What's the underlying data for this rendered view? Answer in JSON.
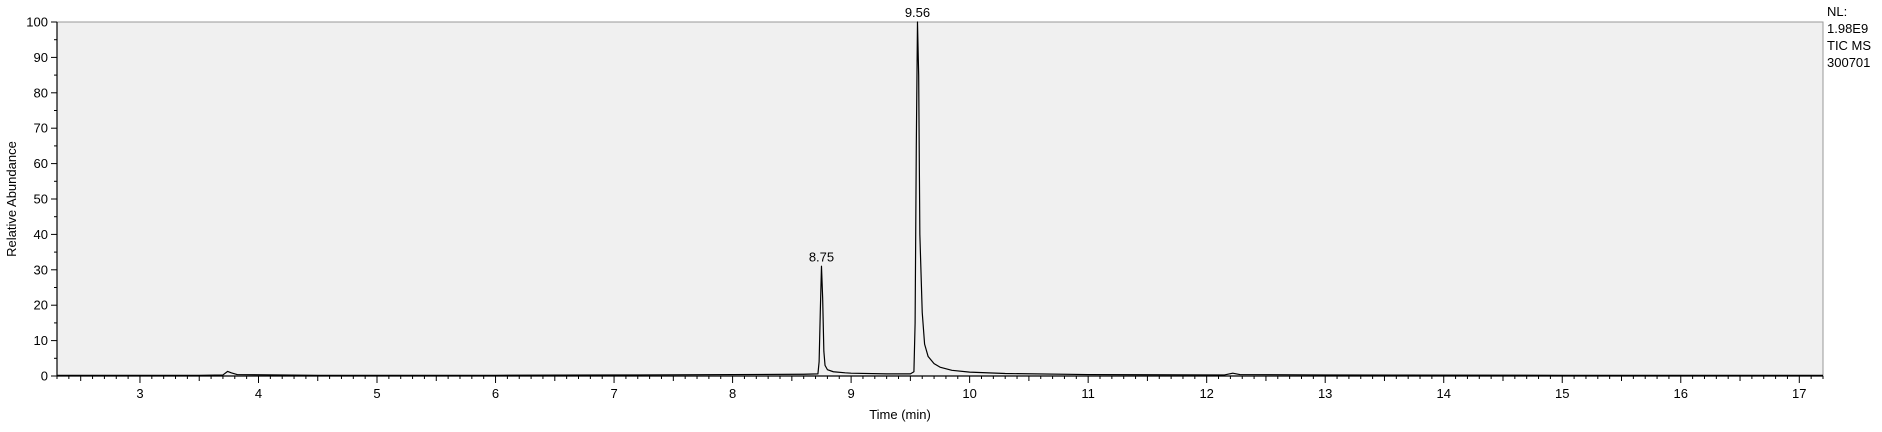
{
  "chart_data": {
    "type": "line",
    "xlabel": "Time (min)",
    "ylabel": "Relative Abundance",
    "xlim": [
      2.3,
      17.2
    ],
    "ylim": [
      0,
      100
    ],
    "x_ticks": [
      3,
      4,
      5,
      6,
      7,
      8,
      9,
      10,
      11,
      12,
      13,
      14,
      15,
      16,
      17
    ],
    "x_tick_labels": [
      "3",
      "4",
      "5",
      "6",
      "7",
      "8",
      "9",
      "10",
      "11",
      "12",
      "13",
      "14",
      "15",
      "16",
      "17"
    ],
    "y_ticks": [
      0,
      10,
      20,
      30,
      40,
      50,
      60,
      70,
      80,
      90,
      100
    ],
    "y_tick_labels": [
      "0",
      "10",
      "20",
      "30",
      "40",
      "50",
      "60",
      "70",
      "80",
      "90",
      "100"
    ],
    "grid": false,
    "plot_background": "#f0f0f0",
    "line_color": "#000000",
    "peak_labels": [
      {
        "x": 8.75,
        "y": 31,
        "text": "8.75"
      },
      {
        "x": 9.56,
        "y": 100,
        "text": "9.56"
      }
    ],
    "info_text": [
      "NL:",
      "1.98E9",
      "TIC  MS",
      "300701"
    ],
    "series": [
      {
        "values": [
          [
            2.3,
            0.2
          ],
          [
            3.0,
            0.2
          ],
          [
            3.5,
            0.2
          ],
          [
            3.7,
            0.3
          ],
          [
            3.74,
            1.3
          ],
          [
            3.77,
            0.9
          ],
          [
            3.82,
            0.4
          ],
          [
            4.5,
            0.2
          ],
          [
            6.0,
            0.2
          ],
          [
            7.0,
            0.3
          ],
          [
            7.2,
            0.3
          ],
          [
            8.0,
            0.4
          ],
          [
            8.6,
            0.5
          ],
          [
            8.72,
            0.6
          ],
          [
            8.73,
            4.0
          ],
          [
            8.74,
            18.0
          ],
          [
            8.75,
            31.0
          ],
          [
            8.76,
            22.0
          ],
          [
            8.77,
            7.0
          ],
          [
            8.78,
            3.0
          ],
          [
            8.8,
            1.8
          ],
          [
            8.85,
            1.2
          ],
          [
            8.95,
            0.9
          ],
          [
            9.0,
            0.8
          ],
          [
            9.3,
            0.6
          ],
          [
            9.5,
            0.6
          ],
          [
            9.53,
            1.2
          ],
          [
            9.54,
            15.0
          ],
          [
            9.55,
            65.0
          ],
          [
            9.56,
            100.0
          ],
          [
            9.57,
            85.0
          ],
          [
            9.58,
            40.0
          ],
          [
            9.6,
            18.0
          ],
          [
            9.62,
            9.0
          ],
          [
            9.65,
            5.5
          ],
          [
            9.7,
            3.5
          ],
          [
            9.75,
            2.5
          ],
          [
            9.85,
            1.6
          ],
          [
            10.0,
            1.1
          ],
          [
            10.3,
            0.7
          ],
          [
            11.0,
            0.4
          ],
          [
            12.15,
            0.3
          ],
          [
            12.22,
            0.8
          ],
          [
            12.28,
            0.4
          ],
          [
            13.0,
            0.3
          ],
          [
            15.0,
            0.2
          ],
          [
            17.2,
            0.2
          ]
        ]
      }
    ]
  }
}
